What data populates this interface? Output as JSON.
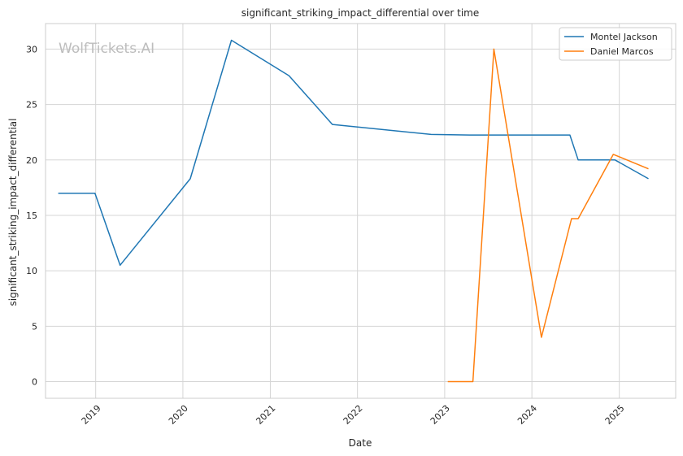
{
  "chart_data": {
    "type": "line",
    "title": "significant_striking_impact_differential over time",
    "xlabel": "Date",
    "ylabel": "significant_striking_impact_differential",
    "watermark": "WolfTickets.AI",
    "x_ticks": [
      "2019",
      "2020",
      "2021",
      "2022",
      "2023",
      "2024",
      "2025"
    ],
    "y_ticks": [
      0,
      5,
      10,
      15,
      20,
      25,
      30
    ],
    "xlim": [
      "2018-06-05",
      "2025-08-25"
    ],
    "ylim": [
      -1.5,
      32.3
    ],
    "grid": true,
    "legend_position": "top-right",
    "series": [
      {
        "name": "Montel Jackson",
        "color": "#1f77b4",
        "points": [
          {
            "x": "2018-07-28",
            "y": 17.0
          },
          {
            "x": "2018-12-29",
            "y": 17.0
          },
          {
            "x": "2019-04-13",
            "y": 10.5
          },
          {
            "x": "2020-02-01",
            "y": 18.3
          },
          {
            "x": "2020-07-22",
            "y": 30.8
          },
          {
            "x": "2021-03-20",
            "y": 27.6
          },
          {
            "x": "2021-09-18",
            "y": 23.2
          },
          {
            "x": "2022-11-05",
            "y": 22.3
          },
          {
            "x": "2023-04-15",
            "y": 22.25
          },
          {
            "x": "2024-06-08",
            "y": 22.25
          },
          {
            "x": "2024-07-13",
            "y": 20.0
          },
          {
            "x": "2024-12-14",
            "y": 20.0
          },
          {
            "x": "2025-05-03",
            "y": 18.3
          }
        ]
      },
      {
        "name": "Daniel Marcos",
        "color": "#ff7f0e",
        "points": [
          {
            "x": "2023-01-14",
            "y": 0.0
          },
          {
            "x": "2023-04-29",
            "y": 0.0
          },
          {
            "x": "2023-07-26",
            "y": 30.0
          },
          {
            "x": "2024-02-10",
            "y": 4.0
          },
          {
            "x": "2024-06-15",
            "y": 14.7
          },
          {
            "x": "2024-07-13",
            "y": 14.7
          },
          {
            "x": "2024-12-07",
            "y": 20.5
          },
          {
            "x": "2025-05-03",
            "y": 19.2
          }
        ]
      }
    ]
  }
}
